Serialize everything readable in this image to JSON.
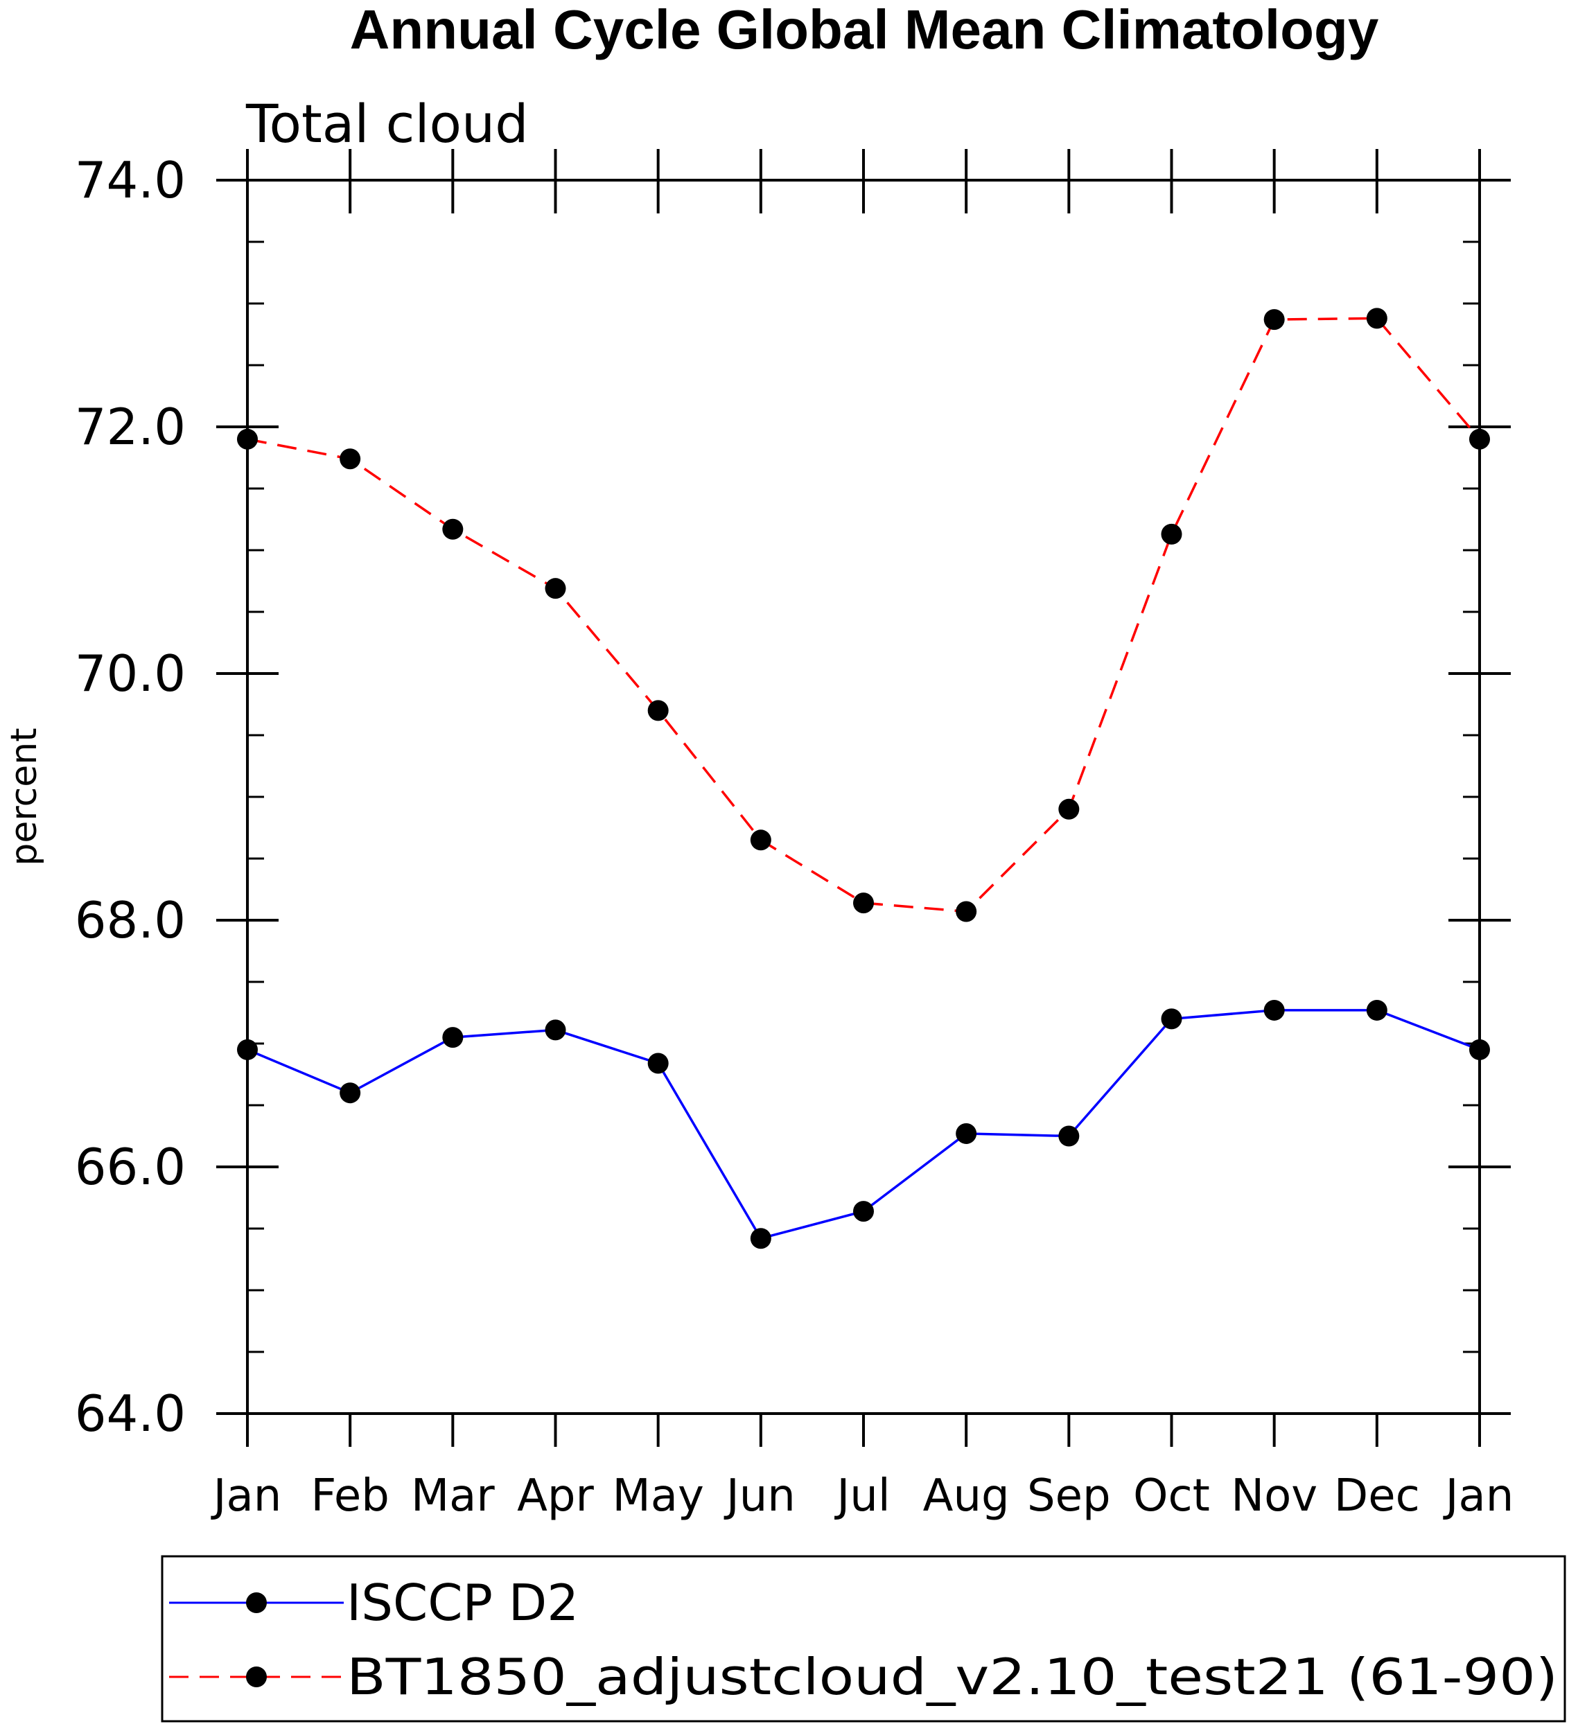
{
  "chart_data": {
    "type": "line",
    "title": "Annual Cycle Global Mean Climatology",
    "subtitle": "Total cloud",
    "xlabel": "",
    "ylabel": "percent",
    "categories": [
      "Jan",
      "Feb",
      "Mar",
      "Apr",
      "May",
      "Jun",
      "Jul",
      "Aug",
      "Sep",
      "Oct",
      "Nov",
      "Dec",
      "Jan"
    ],
    "ylim": [
      64.0,
      74.0
    ],
    "ytick_labels": [
      "64.0",
      "66.0",
      "68.0",
      "70.0",
      "72.0",
      "74.0"
    ],
    "grid": false,
    "legend_position": "bottom",
    "series": [
      {
        "name": "ISCCP D2",
        "color": "#0000ff",
        "line_style": "solid",
        "marker": "filled-circle",
        "values": [
          66.95,
          66.6,
          67.05,
          67.11,
          66.84,
          65.42,
          65.64,
          66.27,
          66.25,
          67.2,
          67.27,
          67.27,
          66.95
        ]
      },
      {
        "name": "BT1850_adjustcloud_v2.10_test21 (61-90)",
        "color": "#ff0000",
        "line_style": "dashed",
        "marker": "filled-circle",
        "values": [
          71.9,
          71.74,
          71.17,
          70.69,
          69.7,
          68.65,
          68.14,
          68.07,
          68.9,
          71.13,
          72.87,
          72.88,
          71.9
        ]
      }
    ]
  }
}
